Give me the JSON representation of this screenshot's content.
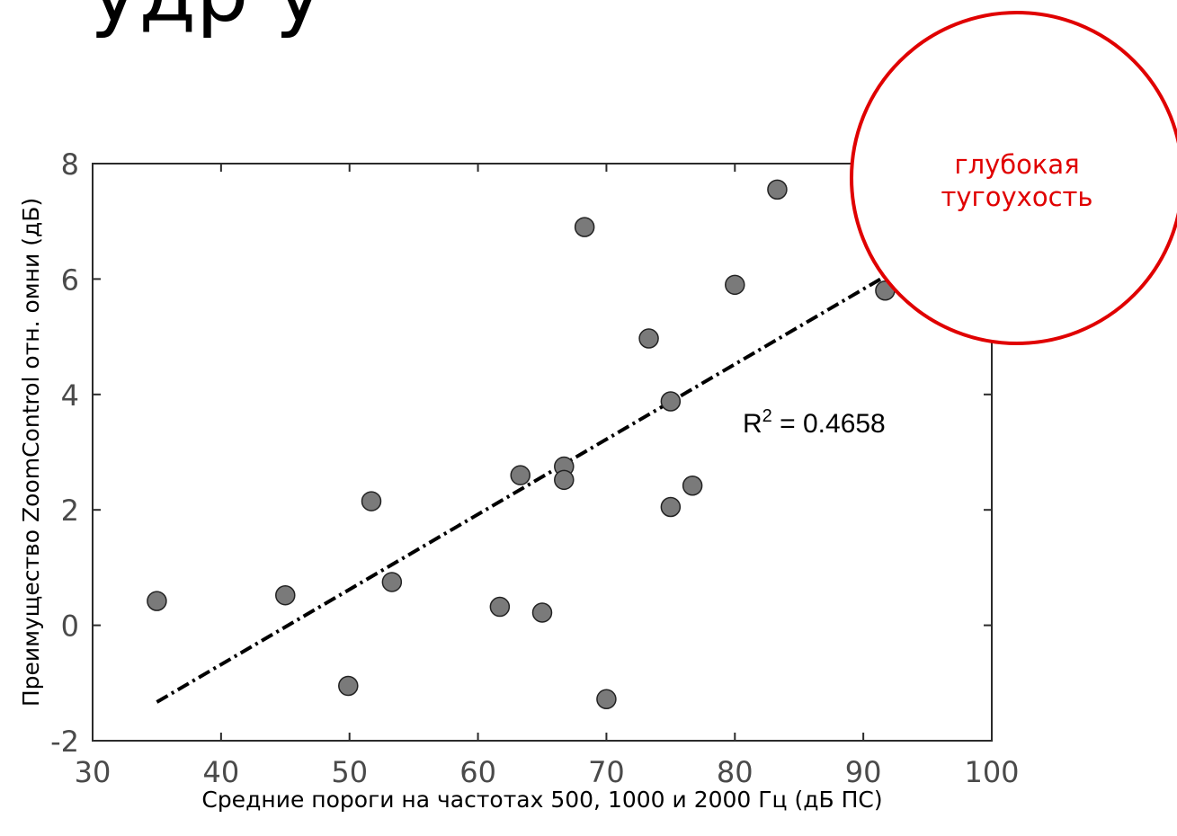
{
  "slide": {
    "title_fragment": "удр                            у"
  },
  "chart_data": {
    "type": "scatter",
    "xlabel": "Средние пороги на частотах 500, 1000 и 2000 Гц (дБ ПС)",
    "ylabel": "Преимущество ZoomControl отн. омни (дБ)",
    "xlim": [
      30,
      100
    ],
    "ylim": [
      -2,
      8
    ],
    "xticks": [
      30,
      40,
      50,
      60,
      70,
      80,
      90,
      100
    ],
    "yticks": [
      -2,
      0,
      2,
      4,
      6,
      8
    ],
    "grid": false,
    "points": [
      {
        "x": 35.0,
        "y": 0.42
      },
      {
        "x": 45.0,
        "y": 0.52
      },
      {
        "x": 49.9,
        "y": -1.05
      },
      {
        "x": 51.7,
        "y": 2.15
      },
      {
        "x": 53.3,
        "y": 0.75
      },
      {
        "x": 61.7,
        "y": 0.32
      },
      {
        "x": 63.3,
        "y": 2.6
      },
      {
        "x": 65.0,
        "y": 0.22
      },
      {
        "x": 66.7,
        "y": 2.75
      },
      {
        "x": 66.7,
        "y": 2.52
      },
      {
        "x": 68.3,
        "y": 6.9
      },
      {
        "x": 70.0,
        "y": -1.28
      },
      {
        "x": 73.3,
        "y": 4.97
      },
      {
        "x": 75.0,
        "y": 3.88
      },
      {
        "x": 75.0,
        "y": 2.05
      },
      {
        "x": 76.7,
        "y": 2.42
      },
      {
        "x": 80.0,
        "y": 5.9
      },
      {
        "x": 83.3,
        "y": 7.55
      },
      {
        "x": 91.7,
        "y": 5.8
      }
    ],
    "trendline": {
      "x": [
        35,
        91.5
      ],
      "y": [
        -1.33,
        6.02
      ],
      "style": "dash-dot"
    },
    "annotation": {
      "r2_label": "R",
      "r2_sup": "2",
      "r2_value": " = 0.4658"
    },
    "callout": {
      "line1": "глубокая",
      "line2": "тугоухость",
      "color": "#e00000"
    },
    "marker_color": "#7a7a7a"
  }
}
